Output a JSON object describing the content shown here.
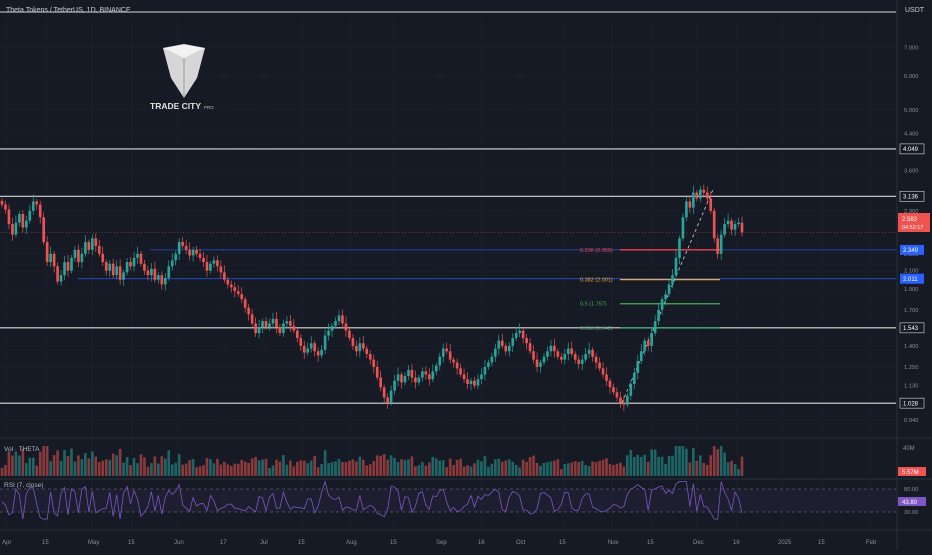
{
  "header": {
    "symbol": "Theta Tokens / TetherUS, 1D, BINANCE"
  },
  "currency": "USDT",
  "logo": {
    "brand": "TRADE CITY",
    "sub": "PRO"
  },
  "colors": {
    "bg": "#161a25",
    "up": "#26a69a",
    "down": "#ef5350",
    "grid": "#1f2330",
    "axis_text": "#8a8e98",
    "white_line": "#d9d9d9",
    "fib_0236": "#ef4452",
    "fib_0382": "#f6a623",
    "fib_05": "#4caf50",
    "fib_0618": "#3f9f6f",
    "rsi": "#7e57c2",
    "blue_line": "#2962ff"
  },
  "chart_data": {
    "type": "candlestick",
    "symbol": "THETA/USDT",
    "timeframe": "1D",
    "scale": "log",
    "ylim": [
      0.88,
      8.2
    ],
    "price_ticks": [
      "7.000",
      "6.000",
      "5.000",
      "4.400",
      "3.600",
      "2.900",
      "2.300",
      "2.100",
      "1.900",
      "1.700",
      "1.400",
      "1.250",
      "1.130",
      "0.940"
    ],
    "date_ticks": [
      "Apr",
      "15",
      "May",
      "15",
      "Jun",
      "17",
      "Jul",
      "15",
      "Aug",
      "15",
      "Sep",
      "16",
      "Oct",
      "15",
      "Nov",
      "15",
      "Dec",
      "16",
      "2025",
      "15",
      "Feb"
    ],
    "closes": [
      3.0,
      2.92,
      2.7,
      2.55,
      2.72,
      2.85,
      2.65,
      2.75,
      2.9,
      3.05,
      3.0,
      2.8,
      2.45,
      2.2,
      2.3,
      2.15,
      1.98,
      2.05,
      2.2,
      2.1,
      2.25,
      2.35,
      2.2,
      2.3,
      2.45,
      2.35,
      2.5,
      2.4,
      2.3,
      2.2,
      2.1,
      2.18,
      2.05,
      2.15,
      2.0,
      2.08,
      2.2,
      2.15,
      2.25,
      2.3,
      2.18,
      2.1,
      2.05,
      2.12,
      2.0,
      2.05,
      1.95,
      2.02,
      2.15,
      2.22,
      2.3,
      2.45,
      2.4,
      2.35,
      2.28,
      2.35,
      2.3,
      2.25,
      2.2,
      2.1,
      2.18,
      2.22,
      2.15,
      2.08,
      2.0,
      1.95,
      1.92,
      1.88,
      1.85,
      1.8,
      1.72,
      1.66,
      1.58,
      1.5,
      1.55,
      1.6,
      1.55,
      1.58,
      1.62,
      1.55,
      1.5,
      1.58,
      1.6,
      1.56,
      1.52,
      1.46,
      1.4,
      1.35,
      1.38,
      1.42,
      1.36,
      1.33,
      1.37,
      1.48,
      1.52,
      1.56,
      1.6,
      1.65,
      1.58,
      1.52,
      1.46,
      1.4,
      1.36,
      1.42,
      1.38,
      1.34,
      1.3,
      1.25,
      1.18,
      1.12,
      1.06,
      1.03,
      1.1,
      1.16,
      1.2,
      1.15,
      1.19,
      1.23,
      1.18,
      1.15,
      1.18,
      1.22,
      1.2,
      1.17,
      1.22,
      1.26,
      1.32,
      1.38,
      1.36,
      1.3,
      1.28,
      1.24,
      1.2,
      1.17,
      1.14,
      1.16,
      1.13,
      1.17,
      1.2,
      1.25,
      1.28,
      1.32,
      1.38,
      1.44,
      1.4,
      1.36,
      1.4,
      1.46,
      1.5,
      1.52,
      1.46,
      1.42,
      1.36,
      1.3,
      1.25,
      1.28,
      1.32,
      1.36,
      1.4,
      1.36,
      1.32,
      1.3,
      1.34,
      1.38,
      1.34,
      1.3,
      1.27,
      1.3,
      1.34,
      1.37,
      1.32,
      1.28,
      1.24,
      1.2,
      1.16,
      1.12,
      1.09,
      1.06,
      1.03,
      1.02,
      1.07,
      1.14,
      1.21,
      1.29,
      1.36,
      1.44,
      1.4,
      1.5,
      1.6,
      1.7,
      1.8,
      1.85,
      1.95,
      2.05,
      2.25,
      2.5,
      2.8,
      3.05,
      2.95,
      3.2,
      3.1,
      3.25,
      3.2,
      3.1,
      2.9,
      2.5,
      2.3,
      2.55,
      2.7,
      2.75,
      2.62,
      2.7,
      2.72,
      2.58
    ],
    "volume_label": "Vol · THETA",
    "volume_value": "5.57M",
    "volume_axis": "40M",
    "rsi_label": "RSI (7, close)",
    "rsi_value": "43.80",
    "rsi_ticks": [
      "80.00",
      "30.00"
    ],
    "horizontal_levels": [
      {
        "price": 4.049,
        "label": "4.049"
      },
      {
        "price": 3.136,
        "label": "3.136"
      },
      {
        "price": 1.543,
        "label": "1.543"
      },
      {
        "price": 1.028,
        "label": "1.028"
      }
    ],
    "blue_levels": [
      {
        "price": 2.349,
        "label": "2.349"
      },
      {
        "price": 2.011,
        "label": "2.011"
      }
    ],
    "last_price": {
      "price": 2.583,
      "label": "2.583",
      "countdown": "04:52:17"
    },
    "fib_levels": [
      {
        "ratio_label": "0.236 (2.350)",
        "price": 2.35,
        "color": "#ef4452"
      },
      {
        "ratio_label": "0.382 (2.001)",
        "price": 2.001,
        "color": "#f6a623"
      },
      {
        "ratio_label": "0.5 (1.757)",
        "price": 1.757,
        "color": "#4caf50"
      },
      {
        "ratio_label": "0.618 (1.542)",
        "price": 1.542,
        "color": "#3f9f6f"
      }
    ]
  }
}
